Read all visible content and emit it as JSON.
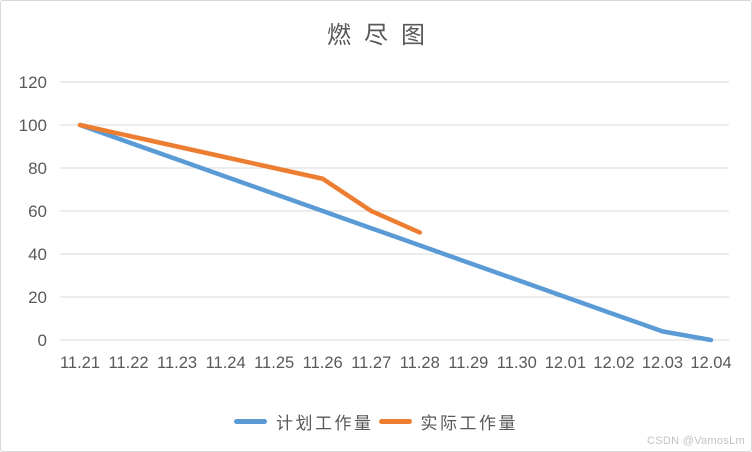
{
  "watermark": "CSDN @VamosLm",
  "chart_data": {
    "type": "line",
    "title": "燃尽图",
    "categories": [
      "11.21",
      "11.22",
      "11.23",
      "11.24",
      "11.25",
      "11.26",
      "11.27",
      "11.28",
      "11.29",
      "11.30",
      "12.01",
      "12.02",
      "12.03",
      "12.04"
    ],
    "series": [
      {
        "name": "计划工作量",
        "color": "#5B9BD5",
        "values": [
          100,
          92,
          84,
          76,
          68,
          60,
          52,
          44,
          36,
          28,
          20,
          12,
          4,
          0
        ]
      },
      {
        "name": "实际工作量",
        "color": "#ED7D31",
        "values": [
          100,
          95,
          90,
          85,
          80,
          75,
          60,
          50
        ]
      }
    ],
    "ylim": [
      0,
      120
    ],
    "y_ticks": [
      0,
      20,
      40,
      60,
      80,
      100,
      120
    ],
    "grid": true,
    "legend_position": "bottom",
    "colors": {
      "gridline": "#D9D9D9",
      "axis_label": "#595959",
      "title": "#595959"
    }
  }
}
